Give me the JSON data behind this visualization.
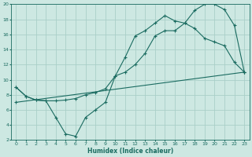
{
  "xlabel": "Humidex (Indice chaleur)",
  "bg_color": "#cde8e2",
  "grid_color": "#aacfc8",
  "line_color": "#1a6b60",
  "xlim": [
    -0.5,
    23.5
  ],
  "ylim": [
    2,
    20
  ],
  "xticks": [
    0,
    1,
    2,
    3,
    4,
    5,
    6,
    7,
    8,
    9,
    10,
    11,
    12,
    13,
    14,
    15,
    16,
    17,
    18,
    19,
    20,
    21,
    22,
    23
  ],
  "yticks": [
    2,
    4,
    6,
    8,
    10,
    12,
    14,
    16,
    18,
    20
  ],
  "line1_x": [
    0,
    1,
    2,
    3,
    4,
    5,
    6,
    7,
    8,
    9,
    10,
    11,
    12,
    13,
    14,
    15,
    16,
    17,
    18,
    19,
    20,
    21,
    22,
    23
  ],
  "line1_y": [
    9,
    7.8,
    7.3,
    7.2,
    7.2,
    7.3,
    7.5,
    8.0,
    8.3,
    8.8,
    10.5,
    13.0,
    15.8,
    16.5,
    17.5,
    18.5,
    17.8,
    17.5,
    19.2,
    20.0,
    20.0,
    19.3,
    17.2,
    11.0
  ],
  "line2_x": [
    0,
    1,
    2,
    3,
    4,
    5,
    6,
    7,
    8,
    9,
    10,
    11,
    12,
    13,
    14,
    15,
    16,
    17,
    18,
    19,
    20,
    21,
    22,
    23
  ],
  "line2_y": [
    9,
    7.8,
    7.3,
    7.2,
    5.0,
    2.8,
    2.5,
    5.0,
    6.0,
    7.0,
    10.5,
    11.0,
    12.0,
    13.5,
    15.8,
    16.5,
    16.5,
    17.5,
    16.8,
    15.5,
    15.0,
    14.5,
    12.3,
    11.0
  ],
  "line3_x": [
    0,
    23
  ],
  "line3_y": [
    7.0,
    11.0
  ]
}
